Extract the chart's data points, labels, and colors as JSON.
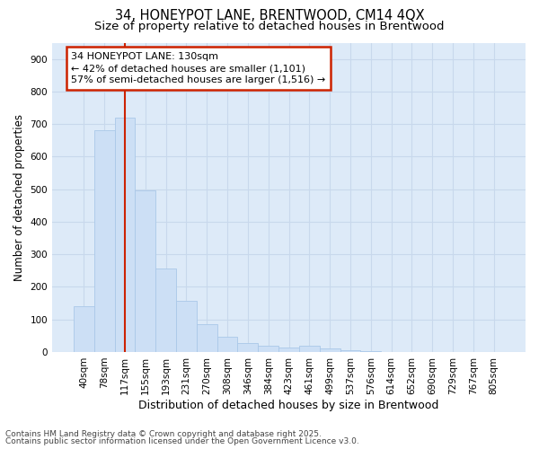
{
  "title_line1": "34, HONEYPOT LANE, BRENTWOOD, CM14 4QX",
  "title_line2": "Size of property relative to detached houses in Brentwood",
  "xlabel": "Distribution of detached houses by size in Brentwood",
  "ylabel": "Number of detached properties",
  "categories": [
    "40sqm",
    "78sqm",
    "117sqm",
    "155sqm",
    "193sqm",
    "231sqm",
    "270sqm",
    "308sqm",
    "346sqm",
    "384sqm",
    "423sqm",
    "461sqm",
    "499sqm",
    "537sqm",
    "576sqm",
    "614sqm",
    "652sqm",
    "690sqm",
    "729sqm",
    "767sqm",
    "805sqm"
  ],
  "values": [
    140,
    680,
    720,
    495,
    255,
    157,
    85,
    48,
    28,
    20,
    15,
    20,
    10,
    5,
    2,
    1,
    1,
    1,
    1,
    1,
    0
  ],
  "bar_color": "#ccdff5",
  "bar_edge_color": "#aac8e8",
  "vline_x": 2,
  "vline_color": "#cc2200",
  "annotation_text": "34 HONEYPOT LANE: 130sqm\n← 42% of detached houses are smaller (1,101)\n57% of semi-detached houses are larger (1,516) →",
  "annotation_box_color": "white",
  "annotation_box_edge": "#cc2200",
  "ylim": [
    0,
    950
  ],
  "yticks": [
    0,
    100,
    200,
    300,
    400,
    500,
    600,
    700,
    800,
    900
  ],
  "grid_color": "#c8d8ec",
  "bg_color": "#ddeaf8",
  "footer_line1": "Contains HM Land Registry data © Crown copyright and database right 2025.",
  "footer_line2": "Contains public sector information licensed under the Open Government Licence v3.0.",
  "title_fontsize": 10.5,
  "subtitle_fontsize": 9.5,
  "tick_fontsize": 7.5,
  "xlabel_fontsize": 9,
  "ylabel_fontsize": 8.5,
  "annotation_fontsize": 8,
  "footer_fontsize": 6.5
}
